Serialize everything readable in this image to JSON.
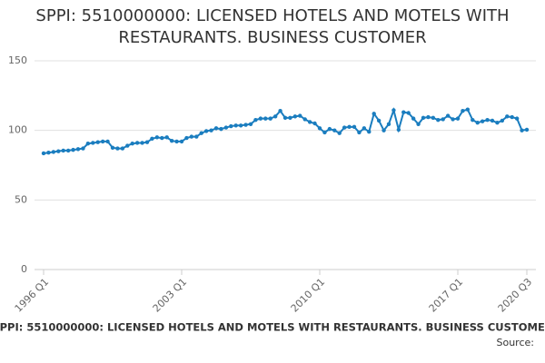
{
  "chart_data": {
    "type": "line",
    "title": "SPPI: 5510000000: LICENSED HOTELS AND MOTELS WITH RESTAURANTS. BUSINESS CUSTOMER",
    "source": "Source:",
    "categories": [
      "1996 Q1",
      null,
      null,
      null,
      null,
      null,
      null,
      null,
      null,
      null,
      null,
      null,
      null,
      null,
      null,
      null,
      null,
      null,
      null,
      null,
      null,
      null,
      null,
      null,
      null,
      null,
      null,
      null,
      "2003 Q1",
      null,
      null,
      null,
      null,
      null,
      null,
      null,
      null,
      null,
      null,
      null,
      null,
      null,
      null,
      null,
      null,
      null,
      null,
      null,
      null,
      null,
      null,
      null,
      null,
      null,
      null,
      null,
      "2010 Q1",
      null,
      null,
      null,
      null,
      null,
      null,
      null,
      null,
      null,
      null,
      null,
      null,
      null,
      null,
      null,
      null,
      null,
      null,
      null,
      null,
      null,
      null,
      null,
      null,
      null,
      null,
      null,
      "2017 Q1",
      null,
      null,
      null,
      null,
      null,
      null,
      null,
      null,
      null,
      null,
      null,
      null,
      null,
      "2020 Q3"
    ],
    "series": [
      {
        "name": "SPPI",
        "color": "#1a7dbf",
        "values": [
          83.5,
          84,
          84.5,
          85,
          85.5,
          85.5,
          86,
          86.5,
          87,
          90.5,
          91,
          91.5,
          92,
          92,
          87.5,
          87,
          87,
          89,
          90.5,
          91,
          91,
          91.5,
          94,
          95,
          94.5,
          95,
          92.5,
          92,
          92,
          94.5,
          95.5,
          95.5,
          98,
          99.5,
          100,
          101.5,
          101,
          102,
          103,
          103.5,
          103.5,
          104,
          104.5,
          107.5,
          108.5,
          108.5,
          108.5,
          110,
          114,
          109,
          109,
          110,
          110.5,
          108,
          106,
          105,
          101.5,
          98.5,
          101,
          100,
          98,
          102,
          102.5,
          102.5,
          98.5,
          101.5,
          99,
          112,
          107,
          100,
          104.5,
          114.5,
          100.5,
          113,
          112.5,
          108.5,
          104.5,
          109,
          109.5,
          109,
          107.5,
          108,
          110.5,
          108,
          108.5,
          114,
          115,
          107.5,
          105.5,
          106.5,
          107.5,
          107,
          105.5,
          107,
          110,
          109.5,
          108.5,
          100,
          100.5
        ]
      }
    ],
    "ylim": [
      0,
      150
    ],
    "yticks": [
      0,
      50,
      100,
      150
    ],
    "grid": true
  }
}
